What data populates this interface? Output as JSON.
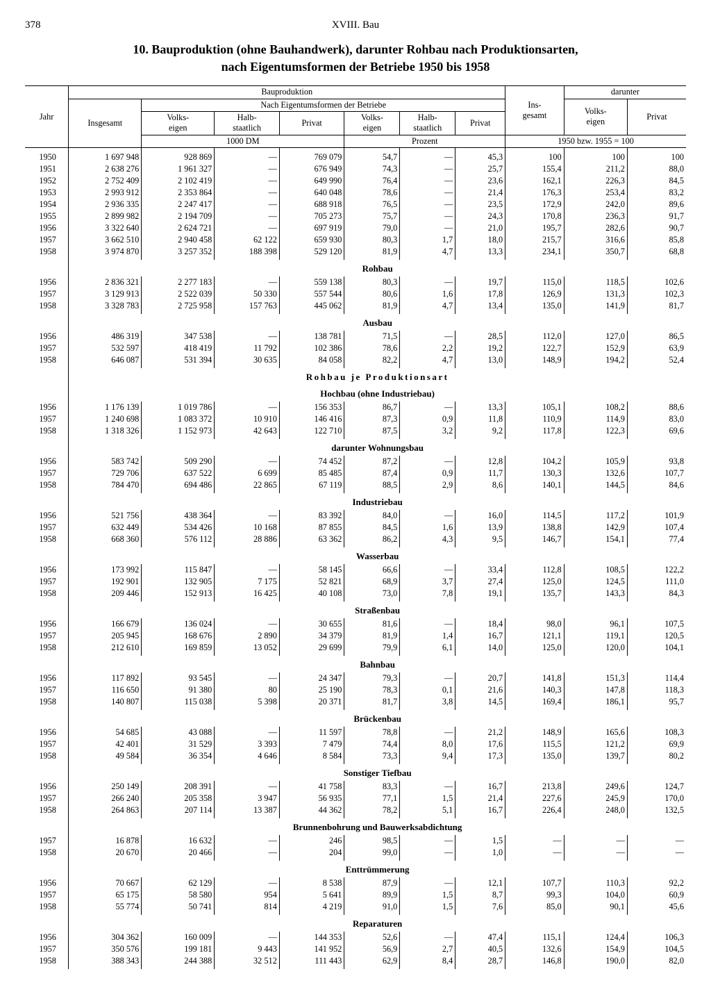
{
  "page_number": "378",
  "chapter": "XVIII. Bau",
  "title_l1": "10. Bauproduktion (ohne Bauhandwerk), darunter Rohbau nach Produktionsarten,",
  "title_l2": "nach Eigentumsformen der Betriebe 1950 bis 1958",
  "head": {
    "bauproduktion": "Bauproduktion",
    "nach_eig": "Nach Eigentumsformen der Betriebe",
    "darunter": "darunter",
    "jahr": "Jahr",
    "insgesamt": "Insgesamt",
    "ins_gesamt": "Ins-\ngesamt",
    "volks_eigen": "Volks-\neigen",
    "halb_staatlich": "Halb-\nstaatlich",
    "privat": "Privat",
    "unit_dm": "1000 DM",
    "unit_proz": "Prozent",
    "unit_idx": "1950 bzw. 1955 = 100"
  },
  "sections": [
    {
      "rows": [
        [
          "1950",
          "1 697 948",
          "928 869",
          "—",
          "769 079",
          "54,7",
          "—",
          "45,3",
          "100",
          "100",
          "100"
        ],
        [
          "1951",
          "2 638 276",
          "1 961 327",
          "—",
          "676 949",
          "74,3",
          "—",
          "25,7",
          "155,4",
          "211,2",
          "88,0"
        ],
        [
          "1952",
          "2 752 409",
          "2 102 419",
          "—",
          "649 990",
          "76,4",
          "—",
          "23,6",
          "162,1",
          "226,3",
          "84,5"
        ],
        [
          "1953",
          "2 993 912",
          "2 353 864",
          "—",
          "640 048",
          "78,6",
          "—",
          "21,4",
          "176,3",
          "253,4",
          "83,2"
        ],
        [
          "1954",
          "2 936 335",
          "2 247 417",
          "—",
          "688 918",
          "76,5",
          "—",
          "23,5",
          "172,9",
          "242,0",
          "89,6"
        ],
        [
          "1955",
          "2 899 982",
          "2 194 709",
          "—",
          "705 273",
          "75,7",
          "—",
          "24,3",
          "170,8",
          "236,3",
          "91,7"
        ],
        [
          "1956",
          "3 322 640",
          "2 624 721",
          "—",
          "697 919",
          "79,0",
          "—",
          "21,0",
          "195,7",
          "282,6",
          "90,7"
        ],
        [
          "1957",
          "3 662 510",
          "2 940 458",
          "62 122",
          "659 930",
          "80,3",
          "1,7",
          "18,0",
          "215,7",
          "316,6",
          "85,8"
        ],
        [
          "1958",
          "3 974 870",
          "3 257 352",
          "188 398",
          "529 120",
          "81,9",
          "4,7",
          "13,3",
          "234,1",
          "350,7",
          "68,8"
        ]
      ]
    },
    {
      "title": "Rohbau",
      "rows": [
        [
          "1956",
          "2 836 321",
          "2 277 183",
          "—",
          "559 138",
          "80,3",
          "—",
          "19,7",
          "115,0",
          "118,5",
          "102,6"
        ],
        [
          "1957",
          "3 129 913",
          "2 522 039",
          "50 330",
          "557 544",
          "80,6",
          "1,6",
          "17,8",
          "126,9",
          "131,3",
          "102,3"
        ],
        [
          "1958",
          "3 328 783",
          "2 725 958",
          "157 763",
          "445 062",
          "81,9",
          "4,7",
          "13,4",
          "135,0",
          "141,9",
          "81,7"
        ]
      ]
    },
    {
      "title": "Ausbau",
      "rows": [
        [
          "1956",
          "486 319",
          "347 538",
          "—",
          "138 781",
          "71,5",
          "—",
          "28,5",
          "112,0",
          "127,0",
          "86,5"
        ],
        [
          "1957",
          "532 597",
          "418 419",
          "11 792",
          "102 386",
          "78,6",
          "2,2",
          "19,2",
          "122,7",
          "152,9",
          "63,9"
        ],
        [
          "1958",
          "646 087",
          "531 394",
          "30 635",
          "84 058",
          "82,2",
          "4,7",
          "13,0",
          "148,9",
          "194,2",
          "52,4"
        ]
      ]
    },
    {
      "title": "Rohbau je Produktionsart",
      "spaced": true,
      "rows": []
    },
    {
      "title": "Hochbau (ohne Industriebau)",
      "rows": [
        [
          "1956",
          "1 176 139",
          "1 019 786",
          "—",
          "156 353",
          "86,7",
          "—",
          "13,3",
          "105,1",
          "108,2",
          "88,6"
        ],
        [
          "1957",
          "1 240 698",
          "1 083 372",
          "10 910",
          "146 416",
          "87,3",
          "0,9",
          "11,8",
          "110,9",
          "114,9",
          "83,0"
        ],
        [
          "1958",
          "1 318 326",
          "1 152 973",
          "42 643",
          "122 710",
          "87,5",
          "3,2",
          "9,2",
          "117,8",
          "122,3",
          "69,6"
        ]
      ]
    },
    {
      "title": "darunter Wohnungsbau",
      "rows": [
        [
          "1956",
          "583 742",
          "509 290",
          "—",
          "74 452",
          "87,2",
          "—",
          "12,8",
          "104,2",
          "105,9",
          "93,8"
        ],
        [
          "1957",
          "729 706",
          "637 522",
          "6 699",
          "85 485",
          "87,4",
          "0,9",
          "11,7",
          "130,3",
          "132,6",
          "107,7"
        ],
        [
          "1958",
          "784 470",
          "694 486",
          "22 865",
          "67 119",
          "88,5",
          "2,9",
          "8,6",
          "140,1",
          "144,5",
          "84,6"
        ]
      ]
    },
    {
      "title": "Industriebau",
      "rows": [
        [
          "1956",
          "521 756",
          "438 364",
          "—",
          "83 392",
          "84,0",
          "—",
          "16,0",
          "114,5",
          "117,2",
          "101,9"
        ],
        [
          "1957",
          "632 449",
          "534 426",
          "10 168",
          "87 855",
          "84,5",
          "1,6",
          "13,9",
          "138,8",
          "142,9",
          "107,4"
        ],
        [
          "1958",
          "668 360",
          "576 112",
          "28 886",
          "63 362",
          "86,2",
          "4,3",
          "9,5",
          "146,7",
          "154,1",
          "77,4"
        ]
      ]
    },
    {
      "title": "Wasserbau",
      "rows": [
        [
          "1956",
          "173 992",
          "115 847",
          "—",
          "58 145",
          "66,6",
          "—",
          "33,4",
          "112,8",
          "108,5",
          "122,2"
        ],
        [
          "1957",
          "192 901",
          "132 905",
          "7 175",
          "52 821",
          "68,9",
          "3,7",
          "27,4",
          "125,0",
          "124,5",
          "111,0"
        ],
        [
          "1958",
          "209 446",
          "152 913",
          "16 425",
          "40 108",
          "73,0",
          "7,8",
          "19,1",
          "135,7",
          "143,3",
          "84,3"
        ]
      ]
    },
    {
      "title": "Straßenbau",
      "rows": [
        [
          "1956",
          "166 679",
          "136 024",
          "—",
          "30 655",
          "81,6",
          "—",
          "18,4",
          "98,0",
          "96,1",
          "107,5"
        ],
        [
          "1957",
          "205 945",
          "168 676",
          "2 890",
          "34 379",
          "81,9",
          "1,4",
          "16,7",
          "121,1",
          "119,1",
          "120,5"
        ],
        [
          "1958",
          "212 610",
          "169 859",
          "13 052",
          "29 699",
          "79,9",
          "6,1",
          "14,0",
          "125,0",
          "120,0",
          "104,1"
        ]
      ]
    },
    {
      "title": "Bahnbau",
      "rows": [
        [
          "1956",
          "117 892",
          "93 545",
          "—",
          "24 347",
          "79,3",
          "—",
          "20,7",
          "141,8",
          "151,3",
          "114,4"
        ],
        [
          "1957",
          "116 650",
          "91 380",
          "80",
          "25 190",
          "78,3",
          "0,1",
          "21,6",
          "140,3",
          "147,8",
          "118,3"
        ],
        [
          "1958",
          "140 807",
          "115 038",
          "5 398",
          "20 371",
          "81,7",
          "3,8",
          "14,5",
          "169,4",
          "186,1",
          "95,7"
        ]
      ]
    },
    {
      "title": "Brückenbau",
      "rows": [
        [
          "1956",
          "54 685",
          "43 088",
          "—",
          "11 597",
          "78,8",
          "—",
          "21,2",
          "148,9",
          "165,6",
          "108,3"
        ],
        [
          "1957",
          "42 401",
          "31 529",
          "3 393",
          "7 479",
          "74,4",
          "8,0",
          "17,6",
          "115,5",
          "121,2",
          "69,9"
        ],
        [
          "1958",
          "49 584",
          "36 354",
          "4 646",
          "8 584",
          "73,3",
          "9,4",
          "17,3",
          "135,0",
          "139,7",
          "80,2"
        ]
      ]
    },
    {
      "title": "Sonstiger Tiefbau",
      "rows": [
        [
          "1956",
          "250 149",
          "208 391",
          "—",
          "41 758",
          "83,3",
          "—",
          "16,7",
          "213,8",
          "249,6",
          "124,7"
        ],
        [
          "1957",
          "266 240",
          "205 358",
          "3 947",
          "56 935",
          "77,1",
          "1,5",
          "21,4",
          "227,6",
          "245,9",
          "170,0"
        ],
        [
          "1958",
          "264 863",
          "207 114",
          "13 387",
          "44 362",
          "78,2",
          "5,1",
          "16,7",
          "226,4",
          "248,0",
          "132,5"
        ]
      ]
    },
    {
      "title": "Brunnenbohrung und Bauwerksabdichtung",
      "rows": [
        [
          "1957",
          "16 878",
          "16 632",
          "—",
          "246",
          "98,5",
          "—",
          "1,5",
          "—",
          "—",
          "—"
        ],
        [
          "1958",
          "20 670",
          "20 466",
          "—",
          "204",
          "99,0",
          "—",
          "1,0",
          "—",
          "—",
          "—"
        ]
      ]
    },
    {
      "title": "Enttrümmerung",
      "rows": [
        [
          "1956",
          "70 667",
          "62 129",
          "—",
          "8 538",
          "87,9",
          "—",
          "12,1",
          "107,7",
          "110,3",
          "92,2"
        ],
        [
          "1957",
          "65 175",
          "58 580",
          "954",
          "5 641",
          "89,9",
          "1,5",
          "8,7",
          "99,3",
          "104,0",
          "60,9"
        ],
        [
          "1958",
          "55 774",
          "50 741",
          "814",
          "4 219",
          "91,0",
          "1,5",
          "7,6",
          "85,0",
          "90,1",
          "45,6"
        ]
      ]
    },
    {
      "title": "Reparaturen",
      "rows": [
        [
          "1956",
          "304 362",
          "160 009",
          "—",
          "144 353",
          "52,6",
          "—",
          "47,4",
          "115,1",
          "124,4",
          "106,3"
        ],
        [
          "1957",
          "350 576",
          "199 181",
          "9 443",
          "141 952",
          "56,9",
          "2,7",
          "40,5",
          "132,6",
          "154,9",
          "104,5"
        ],
        [
          "1958",
          "388 343",
          "244 388",
          "32 512",
          "111 443",
          "62,9",
          "8,4",
          "28,7",
          "146,8",
          "190,0",
          "82,0"
        ]
      ]
    }
  ]
}
